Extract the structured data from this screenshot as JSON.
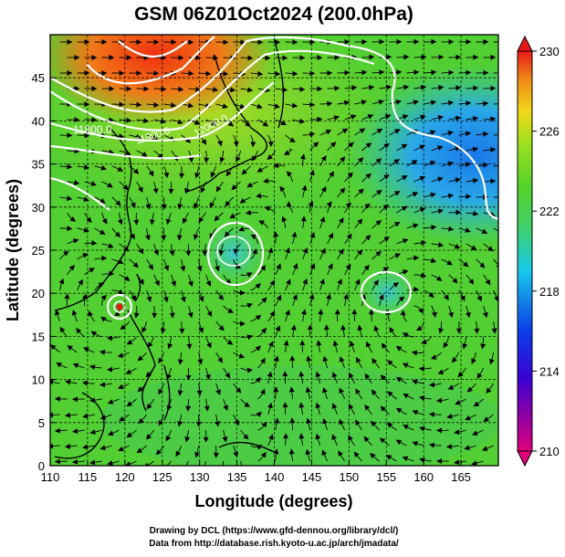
{
  "title": "GSM 06Z01Oct2024 (200.0hPa)",
  "xlabel": "Longitude (degrees)",
  "ylabel": "Latitude  (degrees)",
  "footer": {
    "line1": "Drawing by DCL (https://www.gfd-dennou.org/library/dcl/)",
    "line2": "Data from http://database.rish.kyoto-u.ac.jp/arch/jmadata/"
  },
  "contour_labels": [
    "11800.0",
    "11900.0",
    "12000.0"
  ],
  "colorbar": {
    "ticks": [
      "230",
      "226",
      "222",
      "218",
      "214",
      "210"
    ],
    "colors": [
      "#e0007a",
      "#3a00d0",
      "#0a3ee8",
      "#18c8ea",
      "#3fd06a",
      "#54d22a",
      "#9ee01e",
      "#f0d81a",
      "#f08a18",
      "#e81818"
    ]
  },
  "chart_data": {
    "type": "heatmap",
    "title": "GSM 06Z01Oct2024 (200.0hPa)",
    "xlabel": "Longitude (degrees)",
    "ylabel": "Latitude  (degrees)",
    "xlim": [
      110,
      170
    ],
    "ylim": [
      0,
      50
    ],
    "x_ticks": [
      "110",
      "115",
      "120",
      "125",
      "130",
      "135",
      "140",
      "145",
      "150",
      "155",
      "160",
      "165"
    ],
    "y_ticks": [
      "0",
      "5",
      "10",
      "15",
      "20",
      "25",
      "30",
      "35",
      "40",
      "45"
    ],
    "colorbar_range": [
      210,
      230
    ],
    "grid": true
  }
}
